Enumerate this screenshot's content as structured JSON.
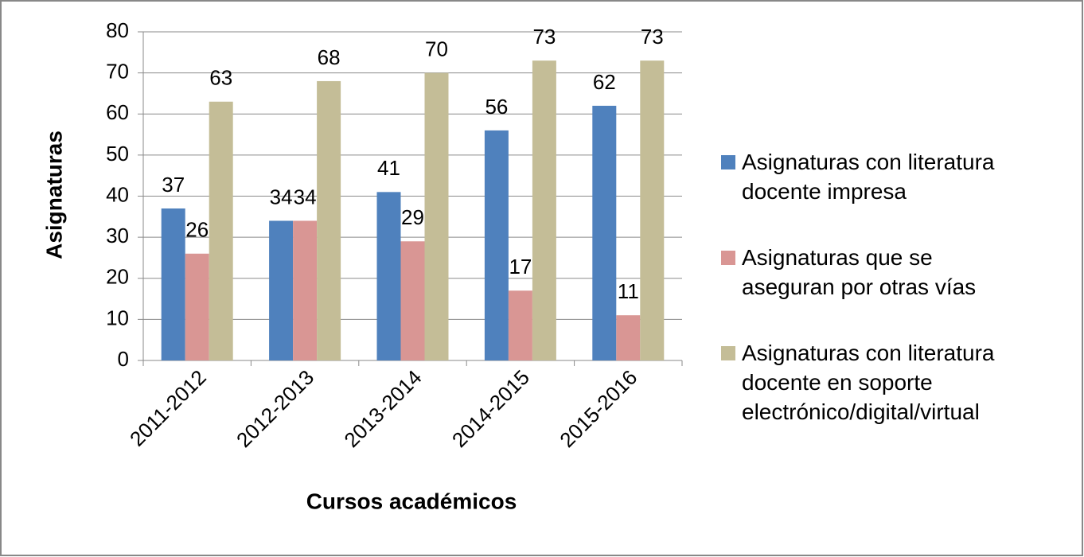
{
  "chart_data": {
    "type": "bar",
    "x_label": "Cursos académicos",
    "y_label": "Asignaturas",
    "categories": [
      "2011-2012",
      "2012-2013",
      "2013-2014",
      "2014-2015",
      "2015-2016"
    ],
    "series": [
      {
        "name": "Asignaturas con literatura docente impresa",
        "color": "#4f81bd",
        "values": [
          37,
          34,
          41,
          56,
          62
        ]
      },
      {
        "name": "Asignaturas que se aseguran por otras vías",
        "color": "#d99694",
        "values": [
          26,
          34,
          29,
          17,
          11
        ]
      },
      {
        "name": "Asignaturas con literatura docente en soporte electrónico/digital/virtual",
        "color": "#c4bd97",
        "values": [
          63,
          68,
          70,
          73,
          73
        ]
      }
    ],
    "ylim": [
      0,
      80
    ],
    "yticks": [
      0,
      10,
      20,
      30,
      40,
      50,
      60,
      70,
      80
    ],
    "grid": true,
    "legend": "right"
  }
}
